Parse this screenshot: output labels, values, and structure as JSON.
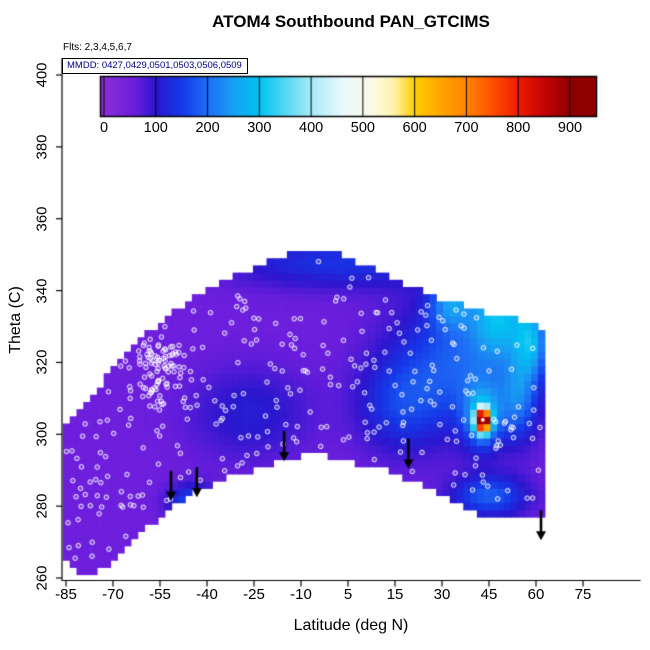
{
  "chart": {
    "title": "ATOM4 Southbound PAN_GTCIMS",
    "flights_label": "Flts: 2,3,4,5,6,7",
    "mmdd_label": "MMDD: 0427,0429,0501,0503,0506,0509",
    "xlabel": "Latitude (deg N)",
    "ylabel": "Theta (C)"
  },
  "chart_data": {
    "type": "heatmap",
    "x_ticks": [
      -85,
      -70,
      -55,
      -40,
      -25,
      -10,
      5,
      15,
      30,
      45,
      60,
      75
    ],
    "y_ticks": [
      260,
      280,
      300,
      320,
      340,
      360,
      380,
      400
    ],
    "x_range": [
      -85,
      75
    ],
    "y_range": [
      260,
      400
    ],
    "colorbar": {
      "ticks": [
        0,
        100,
        200,
        300,
        400,
        500,
        600,
        700,
        800,
        900
      ],
      "stops": [
        {
          "v": 0,
          "c": "#8B2FD6"
        },
        {
          "v": 60,
          "c": "#6A1EDC"
        },
        {
          "v": 100,
          "c": "#2B16CE"
        },
        {
          "v": 150,
          "c": "#1538E8"
        },
        {
          "v": 200,
          "c": "#1E6EF5"
        },
        {
          "v": 250,
          "c": "#18A0F2"
        },
        {
          "v": 300,
          "c": "#00C3F2"
        },
        {
          "v": 350,
          "c": "#55D8F2"
        },
        {
          "v": 400,
          "c": "#A8EAF8"
        },
        {
          "v": 460,
          "c": "#E8F9FD"
        },
        {
          "v": 520,
          "c": "#FDFAE4"
        },
        {
          "v": 560,
          "c": "#FFF2AC"
        },
        {
          "v": 600,
          "c": "#FFCE00"
        },
        {
          "v": 650,
          "c": "#FFA600"
        },
        {
          "v": 700,
          "c": "#FF8400"
        },
        {
          "v": 750,
          "c": "#FF5000"
        },
        {
          "v": 800,
          "c": "#EF1C00"
        },
        {
          "v": 850,
          "c": "#C40505"
        },
        {
          "v": 900,
          "c": "#8E0000"
        }
      ]
    },
    "envelope": {
      "lat": [
        -86,
        -80,
        -75,
        -70,
        -65,
        -60,
        -55,
        -50,
        -45,
        -40,
        -35,
        -30,
        -25,
        -20,
        -15,
        -10,
        -5,
        0,
        5,
        10,
        15,
        20,
        25,
        30,
        35,
        40,
        45,
        50,
        55,
        60,
        63
      ],
      "theta_top": [
        300,
        306,
        312,
        318,
        323,
        327,
        331,
        334,
        337,
        340,
        342,
        344,
        346,
        348,
        350,
        350,
        350,
        349,
        347,
        345,
        343,
        341,
        339,
        337,
        336,
        334,
        333,
        332,
        331,
        329,
        328
      ],
      "theta_bottom": [
        266,
        262,
        263,
        266,
        270,
        275,
        279,
        282,
        285,
        287,
        289,
        290,
        292,
        293,
        294,
        296,
        295,
        294,
        293,
        292,
        291,
        289,
        287,
        285,
        282,
        280,
        278,
        277,
        277,
        278,
        279
      ]
    },
    "field": {
      "base": 55,
      "clamp": [
        0,
        900
      ],
      "features": [
        {
          "lat": 44,
          "theta": 304,
          "amp": 880,
          "slat": 1.5,
          "stheta": 2.2
        },
        {
          "lat": 44,
          "theta": 305,
          "amp": 180,
          "slat": 4,
          "stheta": 6
        },
        {
          "lat": 38,
          "theta": 320,
          "amp": 130,
          "slat": 15,
          "stheta": 13
        },
        {
          "lat": 49,
          "theta": 334,
          "amp": 190,
          "slat": 6,
          "stheta": 8
        },
        {
          "lat": 59,
          "theta": 326,
          "amp": 170,
          "slat": 3.5,
          "stheta": 7
        },
        {
          "lat": 34,
          "theta": 337,
          "amp": 140,
          "slat": 4.5,
          "stheta": 5
        },
        {
          "lat": 0,
          "theta": 348,
          "amp": 85,
          "slat": 24,
          "stheta": 5
        },
        {
          "lat": -28,
          "theta": 306,
          "amp": 55,
          "slat": 13,
          "stheta": 9
        },
        {
          "lat": -46,
          "theta": 281,
          "amp": 120,
          "slat": 5,
          "stheta": 3.5
        },
        {
          "lat": 46,
          "theta": 283,
          "amp": 130,
          "slat": 8,
          "stheta": 4
        },
        {
          "lat": 18,
          "theta": 308,
          "amp": 80,
          "slat": 9,
          "stheta": 9
        },
        {
          "lat": 55,
          "theta": 310,
          "amp": 120,
          "slat": 4,
          "stheta": 8
        }
      ]
    },
    "samples": {
      "seed": 20180427,
      "uniform_count": 300,
      "cluster": {
        "lat": -57,
        "theta": 318,
        "lat_sigma": 9,
        "theta_sigma": 12,
        "count": 80
      },
      "radius": 2.3
    },
    "hotspot_marker": {
      "lat": 44,
      "theta": 304
    },
    "arrows": [
      {
        "lat": -52.5,
        "theta": 281.5
      },
      {
        "lat": -44.5,
        "theta": 282.5
      },
      {
        "lat": -17.5,
        "theta": 292.5
      },
      {
        "lat": 21,
        "theta": 290.5
      },
      {
        "lat": 62,
        "theta": 270.5
      }
    ],
    "colors": {
      "axis": "#000000",
      "arrow": "#000000",
      "sample_ring": "#ffffff",
      "marker_stroke": "#cc0000",
      "mmdd_text": "#00008B"
    }
  }
}
